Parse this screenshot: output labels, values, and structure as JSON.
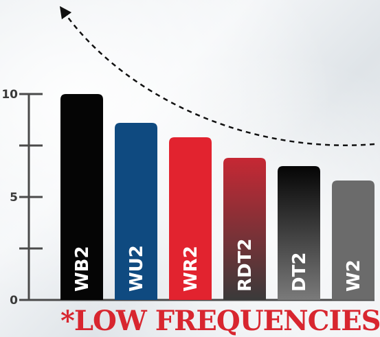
{
  "chart_data": {
    "type": "bar",
    "categories": [
      "WB2",
      "WU2",
      "WR2",
      "RDT2",
      "DT2",
      "W2"
    ],
    "values": [
      10.0,
      8.6,
      7.9,
      6.9,
      6.5,
      5.8
    ],
    "yticks": [
      0,
      5,
      10
    ],
    "ylim": [
      0,
      10
    ],
    "grid": false,
    "legend": "none",
    "footnote": "*LOW FREQUENCIES",
    "bar_colors": [
      "#050505",
      "#0f4a80",
      "#e2232f",
      "gradient:#c62834-#3a3a3a",
      "gradient:#000000-#777777",
      "#6b6b6b"
    ]
  }
}
